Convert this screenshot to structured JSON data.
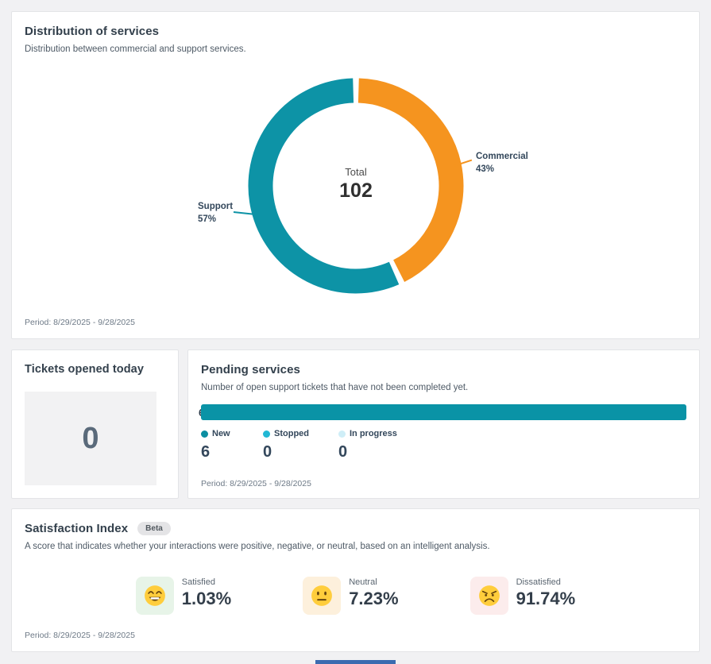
{
  "distribution_card": {
    "title": "Distribution of services",
    "subtitle": "Distribution between commercial and support services.",
    "period": "Period: 8/29/2025 - 9/28/2025",
    "center_label": "Total",
    "center_value": "102",
    "chart_data": {
      "type": "pie",
      "subtype": "donut",
      "title": "Distribution of services",
      "total": 102,
      "slices": [
        {
          "label": "Commercial",
          "percent": 43,
          "color": "#f5941f"
        },
        {
          "label": "Support",
          "percent": 57,
          "color": "#0d93a6"
        }
      ],
      "center_text": [
        "Total",
        "102"
      ],
      "legend_position": "callout-labels"
    },
    "labels": {
      "commercial": {
        "name": "Commercial",
        "pct": "43%"
      },
      "support": {
        "name": "Support",
        "pct": "57%"
      }
    }
  },
  "tickets_card": {
    "title": "Tickets opened today",
    "value": "0"
  },
  "pending_card": {
    "title": "Pending services",
    "subtitle": "Number of open support tickets that have not been completed yet.",
    "period": "Period: 8/29/2025 - 9/28/2025",
    "bar_clipped_label": "6",
    "chart_data": {
      "type": "bar",
      "orientation": "horizontal",
      "stacked": true,
      "categories": [
        "Open support tickets"
      ],
      "series": [
        {
          "name": "New",
          "values": [
            6
          ],
          "color": "#0a93a6"
        },
        {
          "name": "Stopped",
          "values": [
            0
          ],
          "color": "#22b8d4"
        },
        {
          "name": "In progress",
          "values": [
            0
          ],
          "color": "#cfeef7"
        }
      ]
    },
    "legend": [
      {
        "label": "New",
        "value": "6",
        "color": "#0b8ea1"
      },
      {
        "label": "Stopped",
        "value": "0",
        "color": "#22b8d4"
      },
      {
        "label": "In progress",
        "value": "0",
        "color": "#cfeef7"
      }
    ]
  },
  "satisfaction_card": {
    "title": "Satisfaction Index",
    "badge": "Beta",
    "subtitle": "A score that indicates whether your interactions were positive, negative, or neutral, based on an intelligent analysis.",
    "period": "Period: 8/29/2025 - 9/28/2025",
    "stats": [
      {
        "label": "Satisfied",
        "value": "1.03%",
        "icon": "grinning-face-emoji",
        "tile_color": "#e7f4e8"
      },
      {
        "label": "Neutral",
        "value": "7.23%",
        "icon": "neutral-face-emoji",
        "tile_color": "#fdf0dc"
      },
      {
        "label": "Dissatisfied",
        "value": "91.74%",
        "icon": "angry-face-emoji",
        "tile_color": "#fcecec"
      }
    ]
  }
}
